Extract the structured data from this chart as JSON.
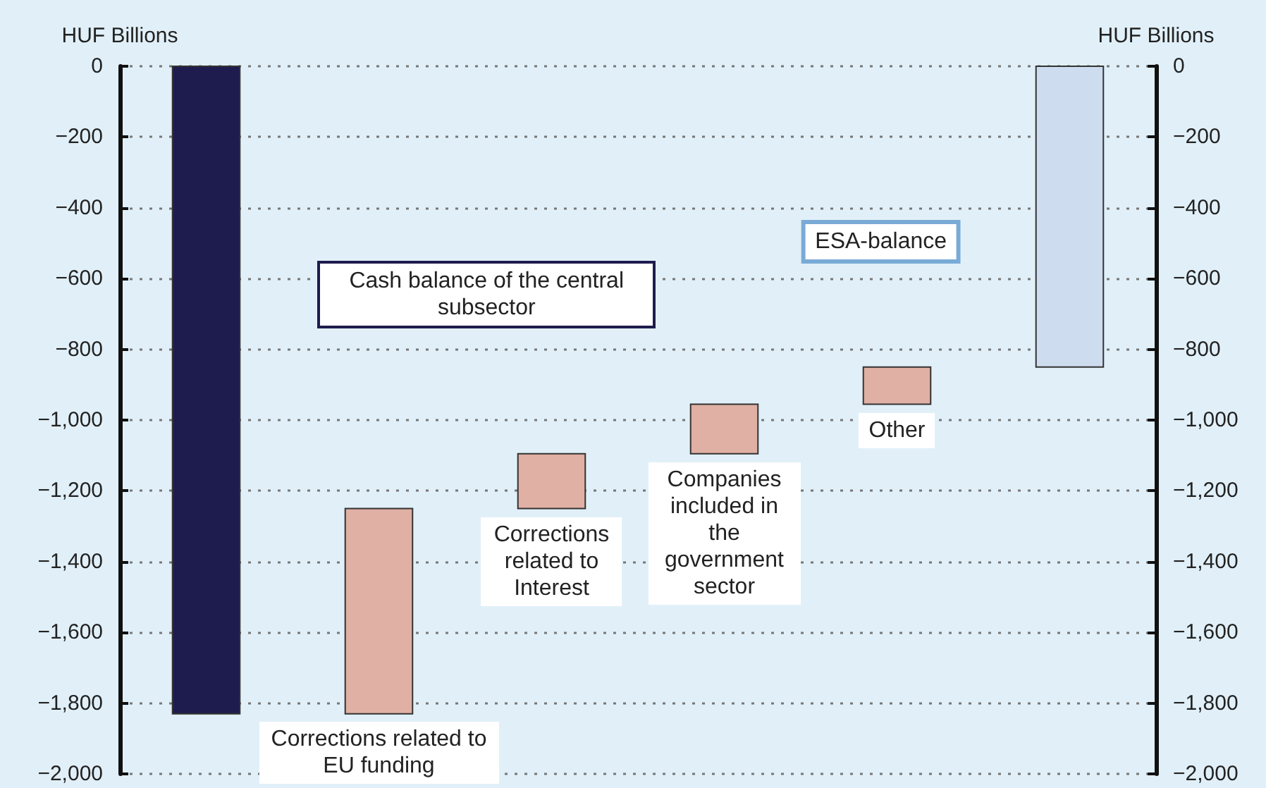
{
  "chart_data": {
    "type": "bar",
    "ylabel": "HUF Billions",
    "y2label": "HUF Billions",
    "categories": [
      null,
      null,
      null,
      null,
      null,
      null
    ],
    "values": [
      -1830,
      580,
      155,
      140,
      105,
      -850
    ],
    "base": [
      0,
      -1830,
      -1250,
      -1095,
      -955,
      0
    ],
    "colors": [
      "#1e1c4e",
      "#e0b0a4",
      "#e0b0a4",
      "#e0b0a4",
      "#e0b0a4",
      "#cddcee"
    ],
    "ylim": [
      -2000,
      0
    ],
    "yticks": [
      0,
      {
        "value": -200,
        "label": "−200"
      },
      {
        "value": -400,
        "label": "−400"
      },
      {
        "value": -600,
        "label": "−600"
      },
      {
        "value": -800,
        "label": "−800"
      },
      {
        "value": -1000,
        "label": "−1,000"
      },
      {
        "value": -1200,
        "label": "−1,200"
      },
      {
        "value": -1400,
        "label": "−1,400"
      },
      {
        "value": -1600,
        "label": "−1,600"
      },
      {
        "value": -1800,
        "label": "−1,800"
      },
      {
        "value": -2000,
        "label": "−2,000"
      }
    ],
    "y2lim": [
      -2000,
      0
    ],
    "y2ticks": [
      0,
      {
        "value": -200,
        "label": "−200"
      },
      {
        "value": -400,
        "label": "−400"
      },
      {
        "value": -600,
        "label": "−600"
      },
      {
        "value": -800,
        "label": "−800"
      },
      {
        "value": -1000,
        "label": "−1,000"
      },
      {
        "value": -1200,
        "label": "−1,200"
      },
      {
        "value": -1400,
        "label": "−1,400"
      },
      {
        "value": -1600,
        "label": "−1,600"
      },
      {
        "value": -1800,
        "label": "−1,800"
      },
      {
        "value": -2000,
        "label": "−2,000"
      }
    ],
    "grid": "y",
    "annotations": [
      "Cash balance of the central subsector",
      "Corrections related to EU funding",
      "Corrections related to Interest",
      "Companies included in the government sector",
      "Other",
      "ESA-balance"
    ]
  }
}
